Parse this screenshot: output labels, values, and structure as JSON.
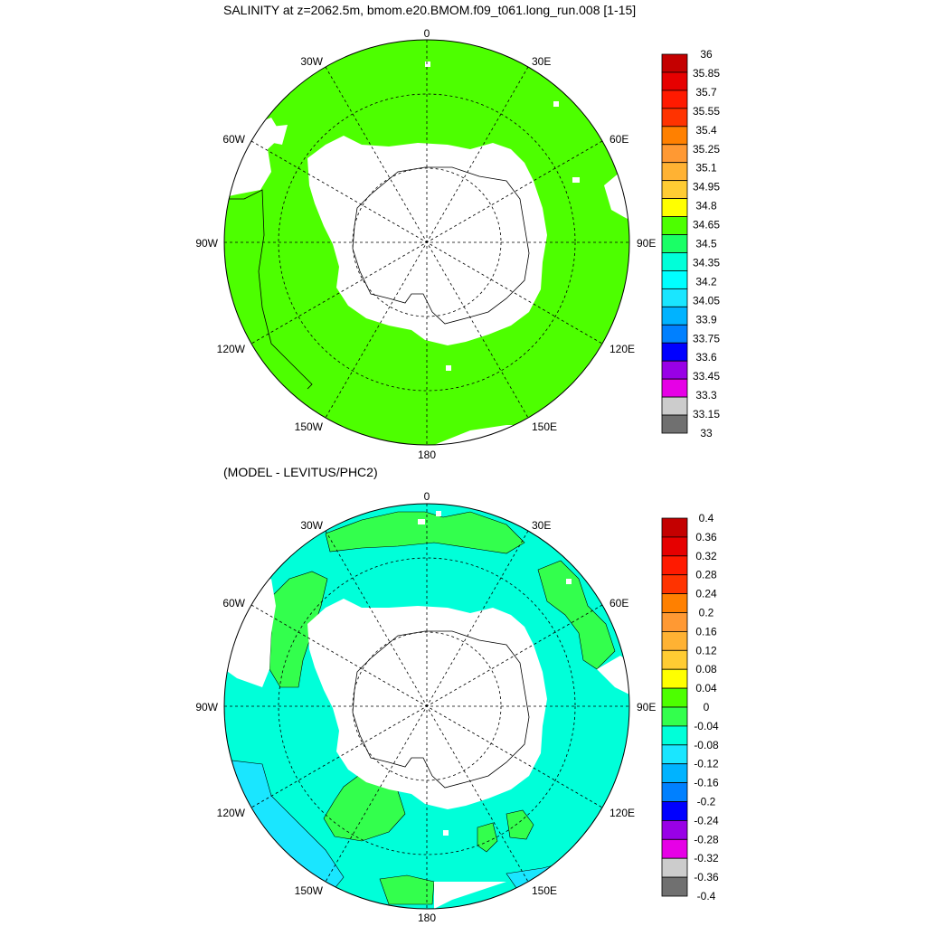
{
  "title": "SALINITY at z=2062.5m, bmom.e20.BMOM.f09_t061.long_run.008 [1-15]",
  "subtitle": "(MODEL - LEVITUS/PHC2)",
  "map_labels": {
    "top": "0",
    "bottom": "180",
    "left": "90W",
    "right": "90E",
    "w30": "30W",
    "e30": "30E",
    "w60": "60W",
    "e60": "60E",
    "w120": "120W",
    "e120": "120E",
    "w150": "150W",
    "e150": "150E"
  },
  "colors": {
    "land": "#ffffff",
    "top_field": "#4dff00",
    "bottom_field": "#00ffd9",
    "bottom_positive": "#33ff4d",
    "bottom_negative": "#1ae6ff",
    "coast": "#000000"
  },
  "top_colorbar": {
    "labels": [
      "36",
      "35.85",
      "35.7",
      "35.55",
      "35.4",
      "35.25",
      "35.1",
      "34.95",
      "34.8",
      "34.65",
      "34.5",
      "34.35",
      "34.2",
      "34.05",
      "33.9",
      "33.75",
      "33.6",
      "33.45",
      "33.3",
      "33.15",
      "33"
    ],
    "colors": [
      "#c40000",
      "#e60000",
      "#ff1a00",
      "#ff3300",
      "#ff8000",
      "#ff9933",
      "#ffb233",
      "#ffcc33",
      "#ffff00",
      "#4dff00",
      "#1aff66",
      "#00ffd9",
      "#00ffff",
      "#1ae6ff",
      "#00b3ff",
      "#0080ff",
      "#0000ff",
      "#9900e6",
      "#e600e6",
      "#cccccc",
      "#707070"
    ]
  },
  "bottom_colorbar": {
    "labels": [
      "0.4",
      "0.36",
      "0.32",
      "0.28",
      "0.24",
      "0.2",
      "0.16",
      "0.12",
      "0.08",
      "0.04",
      "0",
      "-0.04",
      "-0.08",
      "-0.12",
      "-0.16",
      "-0.2",
      "-0.24",
      "-0.28",
      "-0.32",
      "-0.36",
      "-0.4"
    ],
    "colors": [
      "#c40000",
      "#e60000",
      "#ff1a00",
      "#ff3300",
      "#ff8000",
      "#ff9933",
      "#ffb233",
      "#ffcc33",
      "#ffff00",
      "#4dff00",
      "#33ff4d",
      "#00ffd9",
      "#1ae6ff",
      "#00b3ff",
      "#0080ff",
      "#0000ff",
      "#9900e6",
      "#e600e6",
      "#cccccc",
      "#707070"
    ]
  }
}
